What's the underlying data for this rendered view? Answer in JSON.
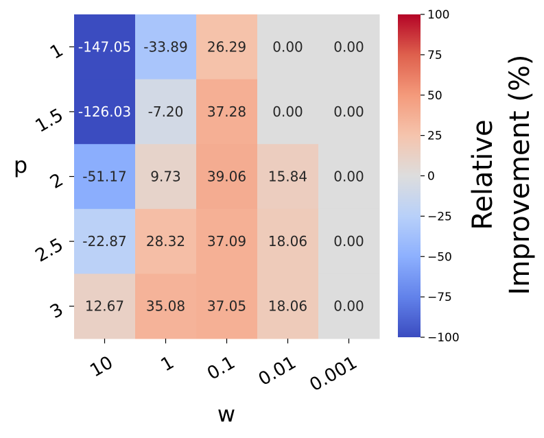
{
  "chart_data": {
    "type": "heatmap",
    "xlabel": "w",
    "ylabel": "p",
    "x_categories": [
      "10",
      "1",
      "0.1",
      "0.01",
      "0.001"
    ],
    "y_categories": [
      "1",
      "1.5",
      "2",
      "2.5",
      "3"
    ],
    "values": [
      [
        -147.05,
        -33.89,
        26.29,
        0.0,
        0.0
      ],
      [
        -126.03,
        -7.2,
        37.28,
        0.0,
        0.0
      ],
      [
        -51.17,
        9.73,
        39.06,
        15.84,
        0.0
      ],
      [
        -22.87,
        28.32,
        37.09,
        18.06,
        0.0
      ],
      [
        12.67,
        35.08,
        37.05,
        18.06,
        0.0
      ]
    ],
    "value_labels": [
      [
        "-147.05",
        "-33.89",
        "26.29",
        "0.00",
        "0.00"
      ],
      [
        "-126.03",
        "-7.20",
        "37.28",
        "0.00",
        "0.00"
      ],
      [
        "-51.17",
        "9.73",
        "39.06",
        "15.84",
        "0.00"
      ],
      [
        "-22.87",
        "28.32",
        "37.09",
        "18.06",
        "0.00"
      ],
      [
        "12.67",
        "35.08",
        "37.05",
        "18.06",
        "0.00"
      ]
    ],
    "colormap": "coolwarm",
    "vmin": -100,
    "vmax": 100,
    "colorbar": {
      "label_line1": "Relative",
      "label_line2": "Improvement (%)",
      "ticks": [
        100,
        75,
        50,
        25,
        0,
        -25,
        -50,
        -75,
        -100
      ],
      "tick_labels": [
        "100",
        "75",
        "50",
        "25",
        "0",
        "−25",
        "−50",
        "−75",
        "−100"
      ]
    }
  }
}
